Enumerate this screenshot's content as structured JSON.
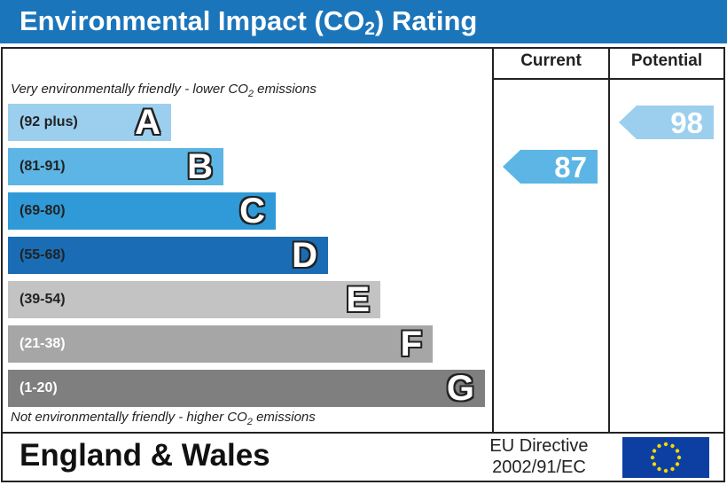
{
  "header": {
    "title_prefix": "Environmental Impact (CO",
    "title_sub": "2",
    "title_suffix": ") Rating"
  },
  "columns": {
    "current": "Current",
    "potential": "Potential"
  },
  "notes": {
    "top_prefix": "Very environmentally friendly - lower CO",
    "top_sub": "2",
    "top_suffix": " emissions",
    "bottom_prefix": "Not environmentally friendly - higher CO",
    "bottom_sub": "2",
    "bottom_suffix": " emissions"
  },
  "chart_data": {
    "type": "bar",
    "title": "Environmental Impact (CO2) Rating",
    "bands": [
      {
        "letter": "A",
        "range": "(92 plus)",
        "color": "#9ccfee",
        "text_color": "#222222"
      },
      {
        "letter": "B",
        "range": "(81-91)",
        "color": "#5cb5e4",
        "text_color": "#222222"
      },
      {
        "letter": "C",
        "range": "(69-80)",
        "color": "#2f9ad7",
        "text_color": "#222222"
      },
      {
        "letter": "D",
        "range": "(55-68)",
        "color": "#1a6db5",
        "text_color": "#222222"
      },
      {
        "letter": "E",
        "range": "(39-54)",
        "color": "#c3c3c3",
        "text_color": "#222222"
      },
      {
        "letter": "F",
        "range": "(21-38)",
        "color": "#a6a6a6",
        "text_color": "#ffffff"
      },
      {
        "letter": "G",
        "range": "(1-20)",
        "color": "#7f7f7f",
        "text_color": "#ffffff"
      }
    ],
    "current": {
      "value": 87,
      "band": "B",
      "color": "#5cb5e4"
    },
    "potential": {
      "value": 98,
      "band": "A",
      "color": "#9ccfee"
    }
  },
  "footer": {
    "region": "England & Wales",
    "directive_line1": "EU Directive",
    "directive_line2": "2002/91/EC",
    "flag_colors": {
      "background": "#0d3fa3",
      "stars": "#f5d800"
    }
  }
}
